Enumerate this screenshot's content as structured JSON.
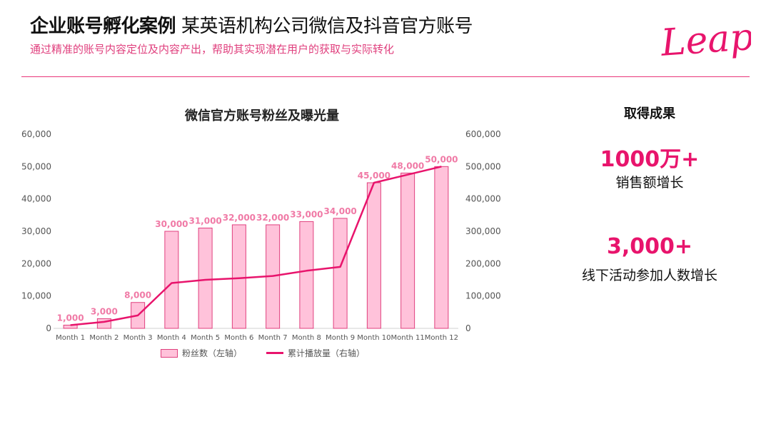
{
  "header": {
    "title_bold": "企业账号孵化案例",
    "title_normal": "某英语机构公司微信及抖音官方账号",
    "subtitle": "通过精准的账号内容定位及内容产出，帮助其实现潜在用户的获取与实际转化",
    "logo_text": "Leap"
  },
  "results": {
    "title": "取得成果",
    "items": [
      {
        "value": "1000万+",
        "label": "销售额增长"
      },
      {
        "value": "3,000+",
        "label": "线下活动参加人数增长"
      }
    ]
  },
  "colors": {
    "accent": "#e8146c",
    "bar_fill": "#ffc2da",
    "bar_stroke": "#e0407e",
    "bar_label": "#f07aa6"
  },
  "chart_data": {
    "type": "bar",
    "title": "微信官方账号粉丝及曝光量",
    "categories": [
      "Month 1",
      "Month 2",
      "Month 3",
      "Month 4",
      "Month 5",
      "Month 6",
      "Month 7",
      "Month 8",
      "Month 9",
      "Month 10",
      "Month 11",
      "Month 12"
    ],
    "ylim": [
      0,
      60000
    ],
    "y2lim": [
      0,
      600000
    ],
    "y_ticks": [
      "0",
      "10,000",
      "20,000",
      "30,000",
      "40,000",
      "50,000",
      "60,000"
    ],
    "y2_ticks": [
      "0",
      "100,000",
      "200,000",
      "300,000",
      "400,000",
      "500,000",
      "600,000"
    ],
    "grid": false,
    "legend_position": "bottom",
    "series": [
      {
        "name": "粉丝数（左轴）",
        "type": "bar",
        "axis": "left",
        "values": [
          1000,
          3000,
          8000,
          30000,
          31000,
          32000,
          32000,
          33000,
          34000,
          45000,
          48000,
          50000
        ],
        "data_labels": [
          "1,000",
          "3,000",
          "8,000",
          "30,000",
          "31,000",
          "32,000",
          "32,000",
          "33,000",
          "34,000",
          "45,000",
          "48,000",
          "50,000"
        ]
      },
      {
        "name": "累计播放量（右轴）",
        "type": "line",
        "axis": "right",
        "values": [
          10000,
          20000,
          40000,
          140000,
          150000,
          155000,
          162000,
          178000,
          190000,
          450000,
          475000,
          500000
        ]
      }
    ]
  }
}
